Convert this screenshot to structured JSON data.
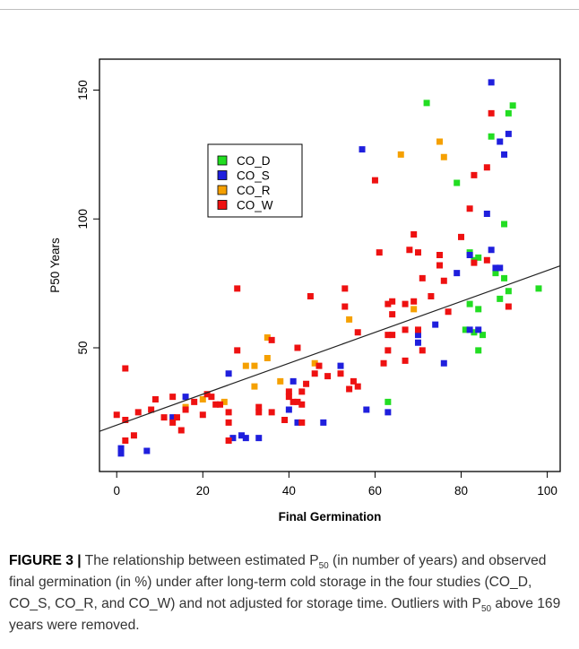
{
  "chart_data": {
    "type": "scatter",
    "xlabel": "Final Germination",
    "ylabel": "P50 Years",
    "xlim": [
      -4,
      103
    ],
    "ylim": [
      2,
      162
    ],
    "xticks": [
      0,
      20,
      40,
      60,
      80,
      100
    ],
    "yticks": [
      50,
      100,
      150
    ],
    "legend_position": "upper-left",
    "series": [
      {
        "name": "CO_D",
        "color": "#22dd22",
        "points": [
          [
            72,
            145
          ],
          [
            92,
            144
          ],
          [
            91,
            141
          ],
          [
            87,
            132
          ],
          [
            79,
            114
          ],
          [
            90,
            98
          ],
          [
            82,
            87
          ],
          [
            84,
            85
          ],
          [
            88,
            79
          ],
          [
            90,
            77
          ],
          [
            83,
            84
          ],
          [
            98,
            73
          ],
          [
            91,
            72
          ],
          [
            82,
            67
          ],
          [
            84,
            65
          ],
          [
            89,
            69
          ],
          [
            81,
            57
          ],
          [
            83,
            56
          ],
          [
            85,
            55
          ],
          [
            84,
            49
          ],
          [
            63,
            29
          ]
        ]
      },
      {
        "name": "CO_S",
        "color": "#1f1fdd",
        "points": [
          [
            87,
            153
          ],
          [
            91,
            133
          ],
          [
            89,
            130
          ],
          [
            90,
            125
          ],
          [
            57,
            127
          ],
          [
            86,
            102
          ],
          [
            87,
            88
          ],
          [
            82,
            86
          ],
          [
            88,
            81
          ],
          [
            89,
            81
          ],
          [
            79,
            79
          ],
          [
            74,
            59
          ],
          [
            70,
            55
          ],
          [
            70,
            52
          ],
          [
            82,
            57
          ],
          [
            84,
            57
          ],
          [
            76,
            44
          ],
          [
            41,
            37
          ],
          [
            40,
            26
          ],
          [
            52,
            43
          ],
          [
            48,
            21
          ],
          [
            42,
            21
          ],
          [
            58,
            26
          ],
          [
            63,
            25
          ],
          [
            30,
            15
          ],
          [
            27,
            15
          ],
          [
            33,
            15
          ],
          [
            26,
            40
          ],
          [
            16,
            31
          ],
          [
            13,
            23
          ],
          [
            1,
            11
          ],
          [
            1,
            9
          ],
          [
            7,
            10
          ],
          [
            29,
            16
          ]
        ]
      },
      {
        "name": "CO_R",
        "color": "#f5a000",
        "points": [
          [
            66,
            125
          ],
          [
            75,
            130
          ],
          [
            76,
            124
          ],
          [
            35,
            54
          ],
          [
            35,
            46
          ],
          [
            54,
            61
          ],
          [
            38,
            37
          ],
          [
            30,
            43
          ],
          [
            32,
            43
          ],
          [
            32,
            35
          ],
          [
            25,
            29
          ],
          [
            16,
            27
          ],
          [
            20,
            30
          ],
          [
            46,
            44
          ],
          [
            69,
            65
          ]
        ]
      },
      {
        "name": "CO_W",
        "color": "#ee1111",
        "points": [
          [
            87,
            141
          ],
          [
            86,
            120
          ],
          [
            83,
            117
          ],
          [
            60,
            115
          ],
          [
            82,
            104
          ],
          [
            80,
            93
          ],
          [
            69,
            94
          ],
          [
            68,
            88
          ],
          [
            70,
            87
          ],
          [
            61,
            87
          ],
          [
            75,
            86
          ],
          [
            83,
            83
          ],
          [
            86,
            84
          ],
          [
            75,
            82
          ],
          [
            76,
            76
          ],
          [
            71,
            77
          ],
          [
            73,
            70
          ],
          [
            91,
            66
          ],
          [
            63,
            67
          ],
          [
            64,
            68
          ],
          [
            69,
            68
          ],
          [
            77,
            64
          ],
          [
            67,
            67
          ],
          [
            64,
            63
          ],
          [
            53,
            73
          ],
          [
            53,
            66
          ],
          [
            56,
            56
          ],
          [
            45,
            70
          ],
          [
            28,
            73
          ],
          [
            64,
            55
          ],
          [
            67,
            57
          ],
          [
            70,
            57
          ],
          [
            71,
            49
          ],
          [
            63,
            49
          ],
          [
            67,
            45
          ],
          [
            62,
            44
          ],
          [
            63,
            55
          ],
          [
            55,
            37
          ],
          [
            56,
            35
          ],
          [
            54,
            34
          ],
          [
            52,
            40
          ],
          [
            47,
            43
          ],
          [
            46,
            40
          ],
          [
            49,
            39
          ],
          [
            40,
            33
          ],
          [
            40,
            31
          ],
          [
            41,
            29
          ],
          [
            42,
            29
          ],
          [
            43,
            28
          ],
          [
            43,
            33
          ],
          [
            44,
            36
          ],
          [
            42,
            50
          ],
          [
            28,
            49
          ],
          [
            39,
            22
          ],
          [
            43,
            21
          ],
          [
            36,
            53
          ],
          [
            33,
            25
          ],
          [
            33,
            27
          ],
          [
            36,
            25
          ],
          [
            21,
            32
          ],
          [
            22,
            31
          ],
          [
            23,
            28
          ],
          [
            24,
            28
          ],
          [
            18,
            29
          ],
          [
            20,
            24
          ],
          [
            26,
            25
          ],
          [
            26,
            21
          ],
          [
            26,
            14
          ],
          [
            15,
            18
          ],
          [
            13,
            21
          ],
          [
            14,
            23
          ],
          [
            11,
            23
          ],
          [
            9,
            30
          ],
          [
            8,
            26
          ],
          [
            5,
            25
          ],
          [
            2,
            42
          ],
          [
            0,
            24
          ],
          [
            2,
            22
          ],
          [
            4,
            16
          ],
          [
            2,
            14
          ],
          [
            13,
            31
          ],
          [
            16,
            26
          ]
        ]
      }
    ],
    "fit_line": {
      "intercept": 20,
      "slope": 0.6
    }
  },
  "caption": {
    "label": "FIGURE 3 |",
    "text_a": " The relationship between estimated P",
    "sub_a": "50",
    "text_b": " (in number of years) and observed final germination (in %) under after long-term cold storage in the four studies (CO_D, CO_S, CO_R, and CO_W) and not adjusted for storage time. Outliers with P",
    "sub_b": "50",
    "text_c": " above 169 years were removed."
  }
}
